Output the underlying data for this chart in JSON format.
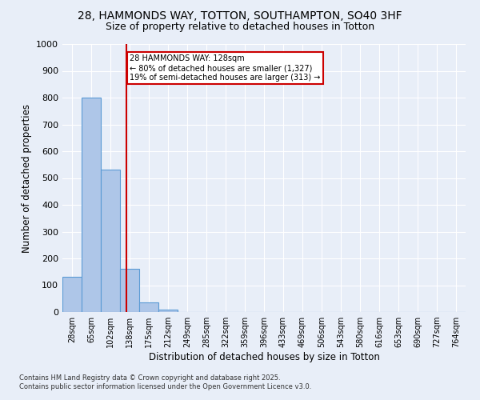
{
  "title1": "28, HAMMONDS WAY, TOTTON, SOUTHAMPTON, SO40 3HF",
  "title2": "Size of property relative to detached houses in Totton",
  "xlabel": "Distribution of detached houses by size in Totton",
  "ylabel": "Number of detached properties",
  "categories": [
    "28sqm",
    "65sqm",
    "102sqm",
    "138sqm",
    "175sqm",
    "212sqm",
    "249sqm",
    "285sqm",
    "322sqm",
    "359sqm",
    "396sqm",
    "433sqm",
    "469sqm",
    "506sqm",
    "543sqm",
    "580sqm",
    "616sqm",
    "653sqm",
    "690sqm",
    "727sqm",
    "764sqm"
  ],
  "values": [
    132,
    800,
    530,
    160,
    37,
    10,
    0,
    0,
    0,
    0,
    0,
    0,
    0,
    0,
    0,
    0,
    0,
    0,
    0,
    0,
    0
  ],
  "bar_color": "#aec6e8",
  "bar_edge_color": "#5b9bd5",
  "red_line_x": 2.82,
  "annotation_title": "28 HAMMONDS WAY: 128sqm",
  "annotation_line1": "← 80% of detached houses are smaller (1,327)",
  "annotation_line2": "19% of semi-detached houses are larger (313) →",
  "annotation_box_color": "#ffffff",
  "annotation_box_edge": "#cc0000",
  "red_line_color": "#cc0000",
  "footer1": "Contains HM Land Registry data © Crown copyright and database right 2025.",
  "footer2": "Contains public sector information licensed under the Open Government Licence v3.0.",
  "ylim": [
    0,
    1000
  ],
  "yticks": [
    0,
    100,
    200,
    300,
    400,
    500,
    600,
    700,
    800,
    900,
    1000
  ],
  "bg_color": "#e8eef8",
  "grid_color": "#ffffff",
  "title_fontsize": 10,
  "subtitle_fontsize": 9
}
